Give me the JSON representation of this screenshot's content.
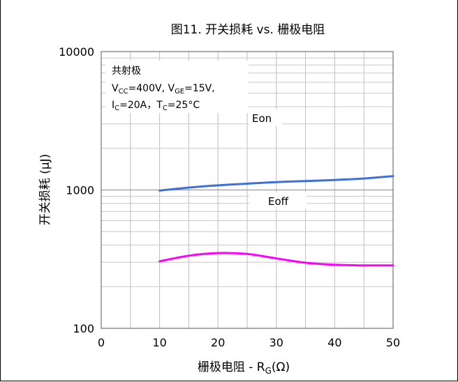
{
  "chart_data": {
    "type": "line",
    "title": "图11. 开关损耗 vs. 栅极电阻",
    "xlabel": "栅极电阻 - R",
    "xlabel_sub": "G",
    "xlabel_unit": "(Ω)",
    "ylabel": "开关损耗 (μJ)",
    "x_scale": "linear",
    "y_scale": "log",
    "xlim": [
      0,
      50
    ],
    "ylim": [
      100,
      10000
    ],
    "x_ticks": [
      0,
      10,
      20,
      30,
      40,
      50
    ],
    "x_tick_labels": [
      "0",
      "10",
      "20",
      "30",
      "40",
      "50"
    ],
    "y_ticks": [
      100,
      1000,
      10000
    ],
    "y_tick_labels": [
      "100",
      "1000",
      "10000"
    ],
    "grid": true,
    "annotation": {
      "line1": "共射极",
      "line2_parts": [
        "V",
        "CC",
        "=400V, V",
        "GE",
        "=15V,"
      ],
      "line3_parts": [
        "I",
        "C",
        "=20A，T",
        "C",
        "=25°C"
      ]
    },
    "series": [
      {
        "name": "Eon",
        "color": "#3f6fd8",
        "x": [
          10,
          15,
          20,
          25,
          30,
          35,
          40,
          45,
          50
        ],
        "values": [
          990,
          1040,
          1080,
          1110,
          1140,
          1160,
          1180,
          1210,
          1260
        ]
      },
      {
        "name": "Eoff",
        "color": "#ff00ff",
        "x": [
          10,
          15,
          20,
          25,
          30,
          35,
          40,
          45,
          50
        ],
        "values": [
          305,
          335,
          350,
          345,
          320,
          298,
          288,
          285,
          285
        ]
      }
    ]
  }
}
